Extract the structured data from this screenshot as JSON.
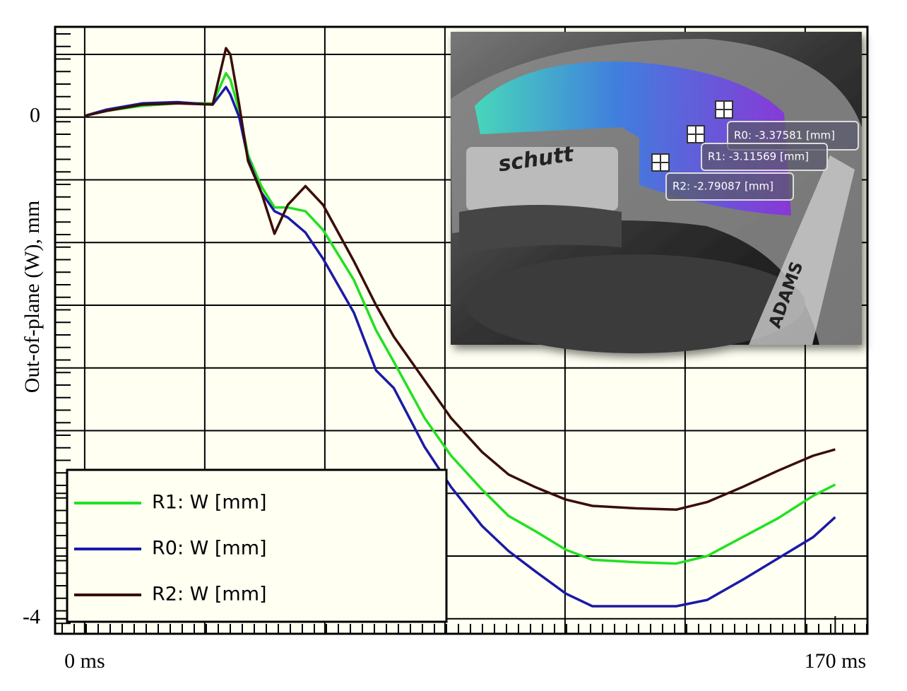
{
  "chart_data": {
    "type": "line",
    "ylabel": "Out-of-plane (W), mm",
    "x": [
      0,
      5,
      13,
      21,
      29,
      32,
      33,
      35,
      37,
      40,
      43,
      46,
      50,
      54,
      61,
      66,
      70,
      77,
      83,
      90,
      96,
      102,
      109,
      115,
      125,
      134,
      141,
      149,
      157,
      165,
      170
    ],
    "series": [
      {
        "name": "R1: W [mm]",
        "color": "#22e022",
        "values": [
          0.01,
          0.05,
          0.09,
          0.11,
          0.11,
          0.35,
          0.3,
          0.05,
          -0.3,
          -0.55,
          -0.72,
          -0.72,
          -0.75,
          -0.9,
          -1.3,
          -1.7,
          -1.95,
          -2.4,
          -2.7,
          -2.97,
          -3.18,
          -3.3,
          -3.45,
          -3.53,
          -3.55,
          -3.56,
          -3.5,
          -3.35,
          -3.2,
          -3.02,
          -2.93
        ]
      },
      {
        "name": "R0: W [mm]",
        "color": "#1a1aa8",
        "values": [
          0.01,
          0.06,
          0.11,
          0.12,
          0.1,
          0.24,
          0.18,
          0.0,
          -0.33,
          -0.6,
          -0.75,
          -0.8,
          -0.92,
          -1.13,
          -1.56,
          -2.02,
          -2.16,
          -2.63,
          -2.95,
          -3.26,
          -3.46,
          -3.62,
          -3.8,
          -3.9,
          -3.9,
          -3.9,
          -3.85,
          -3.69,
          -3.52,
          -3.35,
          -3.19
        ]
      },
      {
        "name": "R2: W [mm]",
        "color": "#3a0d08",
        "values": [
          0.01,
          0.05,
          0.1,
          0.11,
          0.1,
          0.55,
          0.5,
          0.1,
          -0.35,
          -0.6,
          -0.93,
          -0.7,
          -0.55,
          -0.7,
          -1.15,
          -1.5,
          -1.75,
          -2.1,
          -2.4,
          -2.67,
          -2.85,
          -2.95,
          -3.05,
          -3.1,
          -3.12,
          -3.13,
          -3.07,
          -2.95,
          -2.82,
          -2.7,
          -2.65
        ]
      }
    ],
    "xlim": [
      -6.7,
      177.3
    ],
    "ylim": [
      -4.12,
      0.72
    ],
    "xticks": [
      {
        "value": 0,
        "label": "0 ms"
      },
      {
        "value": 170,
        "label": "170 ms"
      }
    ],
    "yticks": [
      0,
      -4
    ],
    "grid": true,
    "legend": "lower left",
    "inset": {
      "labels": [
        "R0: -3.37581 [mm]",
        "R1: -3.11569 [mm]",
        "R2: -2.79087 [mm]"
      ],
      "texts": [
        "schutt",
        "ADAMS"
      ]
    }
  }
}
